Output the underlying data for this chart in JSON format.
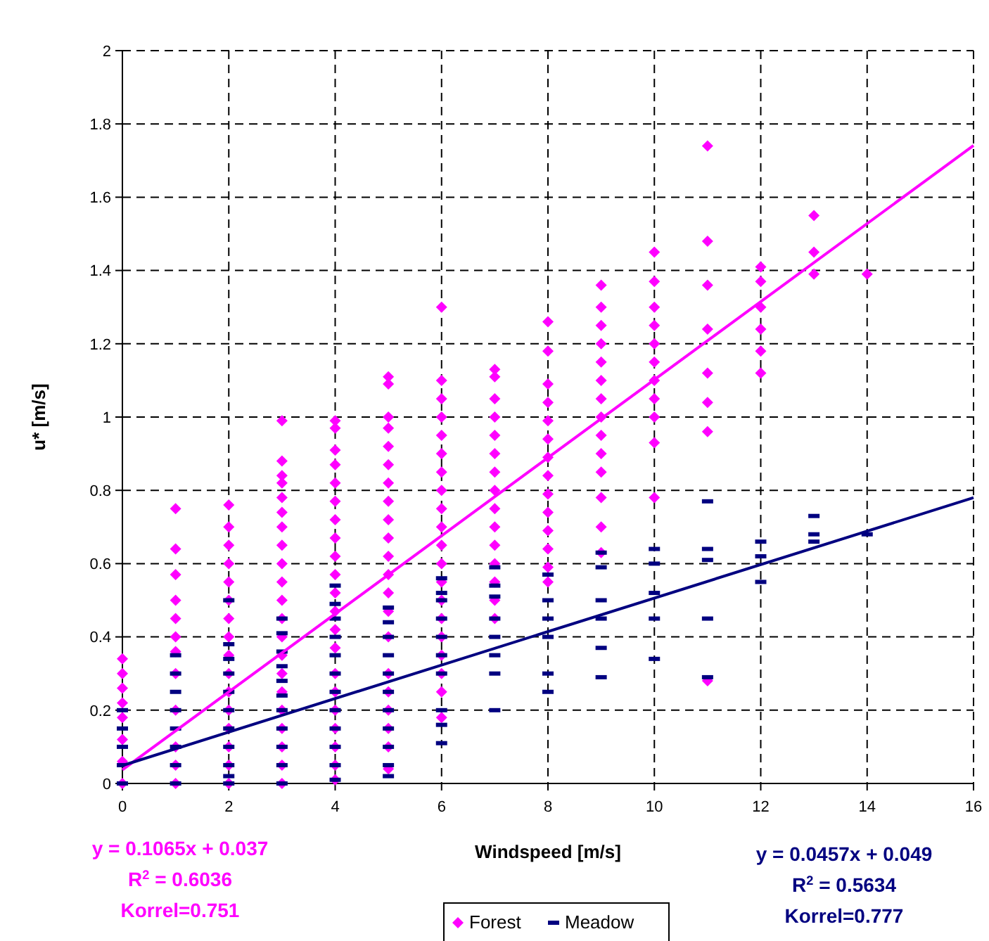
{
  "chart_data": {
    "type": "scatter",
    "xlabel": "Windspeed [m/s]",
    "ylabel": "u* [m/s]",
    "xlim": [
      0,
      16
    ],
    "xticks": [
      0,
      2,
      4,
      6,
      8,
      10,
      12,
      14,
      16
    ],
    "ylim": [
      0,
      2
    ],
    "yticks": [
      0,
      0.2,
      0.4,
      0.6,
      0.8,
      1,
      1.2,
      1.4,
      1.6,
      1.8,
      2
    ],
    "grid": true,
    "legend": "bottom",
    "series": [
      {
        "name": "Forest",
        "color": "#ff00ff",
        "marker": "diamond",
        "x": [
          0,
          0,
          0,
          0,
          0,
          0,
          0,
          0,
          1,
          1,
          1,
          1,
          1,
          1,
          1,
          1,
          1,
          1,
          1,
          1,
          2,
          2,
          2,
          2,
          2,
          2,
          2,
          2,
          2,
          2,
          2,
          2,
          2,
          2,
          2,
          2,
          3,
          3,
          3,
          3,
          3,
          3,
          3,
          3,
          3,
          3,
          3,
          3,
          3,
          3,
          3,
          3,
          3,
          3,
          3,
          3,
          3,
          4,
          4,
          4,
          4,
          4,
          4,
          4,
          4,
          4,
          4,
          4,
          4,
          4,
          4,
          4,
          4,
          4,
          4,
          4,
          4,
          4,
          5,
          5,
          5,
          5,
          5,
          5,
          5,
          5,
          5,
          5,
          5,
          5,
          5,
          5,
          5,
          5,
          5,
          5,
          5,
          5,
          5,
          6,
          6,
          6,
          6,
          6,
          6,
          6,
          6,
          6,
          6,
          6,
          6,
          6,
          6,
          6,
          6,
          6,
          6,
          6,
          6,
          7,
          7,
          7,
          7,
          7,
          7,
          7,
          7,
          7,
          7,
          7,
          7,
          7,
          7,
          7,
          8,
          8,
          8,
          8,
          8,
          8,
          8,
          8,
          8,
          8,
          8,
          8,
          8,
          8,
          9,
          9,
          9,
          9,
          9,
          9,
          9,
          9,
          9,
          9,
          9,
          9,
          9,
          9,
          10,
          10,
          10,
          10,
          10,
          10,
          10,
          10,
          10,
          10,
          10,
          11,
          11,
          11,
          11,
          11,
          11,
          11,
          11,
          12,
          12,
          12,
          12,
          12,
          12,
          13,
          13,
          13,
          14
        ],
        "values": [
          0.34,
          0.3,
          0.26,
          0.22,
          0.18,
          0.12,
          0.06,
          0,
          0.75,
          0.64,
          0.57,
          0.5,
          0.45,
          0.4,
          0.36,
          0.3,
          0.2,
          0.1,
          0.05,
          0,
          0.76,
          0.7,
          0.65,
          0.6,
          0.55,
          0.5,
          0.45,
          0.4,
          0.35,
          0.3,
          0.25,
          0.2,
          0.15,
          0.1,
          0.05,
          0,
          0.99,
          0.88,
          0.84,
          0.82,
          0.78,
          0.74,
          0.7,
          0.65,
          0.6,
          0.55,
          0.5,
          0.45,
          0.4,
          0.35,
          0.3,
          0.25,
          0.2,
          0.15,
          0.1,
          0.05,
          0,
          0.99,
          0.97,
          0.91,
          0.87,
          0.82,
          0.77,
          0.72,
          0.67,
          0.62,
          0.57,
          0.52,
          0.47,
          0.42,
          0.37,
          0.3,
          0.25,
          0.2,
          0.15,
          0.1,
          0.05,
          0.01,
          1.11,
          1.09,
          1,
          0.97,
          0.92,
          0.87,
          0.82,
          0.77,
          0.72,
          0.67,
          0.62,
          0.57,
          0.52,
          0.47,
          0.4,
          0.3,
          0.25,
          0.2,
          0.15,
          0.1,
          0.04,
          1.3,
          1.1,
          1.05,
          1,
          0.95,
          0.9,
          0.85,
          0.8,
          0.75,
          0.7,
          0.65,
          0.6,
          0.55,
          0.5,
          0.45,
          0.4,
          0.35,
          0.3,
          0.25,
          0.18,
          1.13,
          1.11,
          1.05,
          1,
          0.95,
          0.9,
          0.85,
          0.8,
          0.75,
          0.7,
          0.65,
          0.6,
          0.55,
          0.5,
          0.45,
          1.26,
          1.18,
          1.09,
          1.04,
          0.99,
          0.94,
          0.89,
          0.84,
          0.79,
          0.74,
          0.69,
          0.64,
          0.59,
          0.55,
          1.36,
          1.3,
          1.25,
          1.2,
          1.15,
          1.1,
          1.05,
          1,
          0.95,
          0.9,
          0.85,
          0.78,
          0.7,
          0.63,
          1.45,
          1.37,
          1.3,
          1.25,
          1.2,
          1.15,
          1.1,
          1.05,
          1,
          0.93,
          0.78,
          1.74,
          1.48,
          1.36,
          1.24,
          1.12,
          1.04,
          0.96,
          0.28,
          1.41,
          1.37,
          1.3,
          1.24,
          1.18,
          1.12,
          1.55,
          1.45,
          1.39,
          1.39
        ]
      },
      {
        "name": "Meadow",
        "color": "#000080",
        "x": [
          0,
          0,
          0,
          0,
          0,
          1,
          1,
          1,
          1,
          1,
          1,
          1,
          1,
          2,
          2,
          2,
          2,
          2,
          2,
          2,
          2,
          2,
          2,
          2,
          3,
          3,
          3,
          3,
          3,
          3,
          3,
          3,
          3,
          3,
          3,
          4,
          4,
          4,
          4,
          4,
          4,
          4,
          4,
          4,
          4,
          4,
          4,
          5,
          5,
          5,
          5,
          5,
          5,
          5,
          5,
          5,
          5,
          5,
          6,
          6,
          6,
          6,
          6,
          6,
          6,
          6,
          6,
          6,
          7,
          7,
          7,
          7,
          7,
          7,
          7,
          7,
          8,
          8,
          8,
          8,
          8,
          8,
          9,
          9,
          9,
          9,
          9,
          9,
          10,
          10,
          10,
          10,
          10,
          11,
          11,
          11,
          11,
          11,
          12,
          12,
          12,
          13,
          13,
          13,
          14
        ],
        "values": [
          0.2,
          0.15,
          0.1,
          0.05,
          0,
          0.35,
          0.3,
          0.25,
          0.2,
          0.15,
          0.1,
          0.05,
          0,
          0.5,
          0.38,
          0.34,
          0.3,
          0.25,
          0.2,
          0.15,
          0.1,
          0.05,
          0.02,
          0,
          0.45,
          0.41,
          0.36,
          0.32,
          0.28,
          0.24,
          0.2,
          0.15,
          0.1,
          0.05,
          0,
          0.54,
          0.49,
          0.45,
          0.4,
          0.35,
          0.3,
          0.25,
          0.2,
          0.15,
          0.1,
          0.05,
          0.01,
          0.48,
          0.44,
          0.4,
          0.35,
          0.3,
          0.25,
          0.2,
          0.15,
          0.1,
          0.05,
          0.02,
          0.56,
          0.52,
          0.5,
          0.45,
          0.4,
          0.35,
          0.3,
          0.2,
          0.16,
          0.11,
          0.59,
          0.54,
          0.51,
          0.45,
          0.4,
          0.35,
          0.3,
          0.2,
          0.57,
          0.5,
          0.45,
          0.4,
          0.3,
          0.25,
          0.63,
          0.59,
          0.5,
          0.45,
          0.37,
          0.29,
          0.64,
          0.6,
          0.52,
          0.45,
          0.34,
          0.77,
          0.64,
          0.61,
          0.45,
          0.29,
          0.66,
          0.62,
          0.55,
          0.73,
          0.68,
          0.66,
          0.68
        ]
      },
      {
        "type": "line",
        "color": "#ff00ff",
        "marker": "none",
        "x": [
          0,
          16
        ],
        "values": [
          0.037,
          1.741
        ]
      },
      {
        "type": "line",
        "color": "#000080",
        "marker": "none",
        "x": [
          0,
          16
        ],
        "values": [
          0.049,
          0.78
        ]
      }
    ],
    "annotations": [
      "y = 0.1065x + 0.037",
      "R$^{2}$ = 0.6036",
      "Korrel=0.751",
      "y = 0.0457x + 0.049",
      "R$^{2}$ = 0.5634",
      "Korrel=0.777"
    ]
  }
}
